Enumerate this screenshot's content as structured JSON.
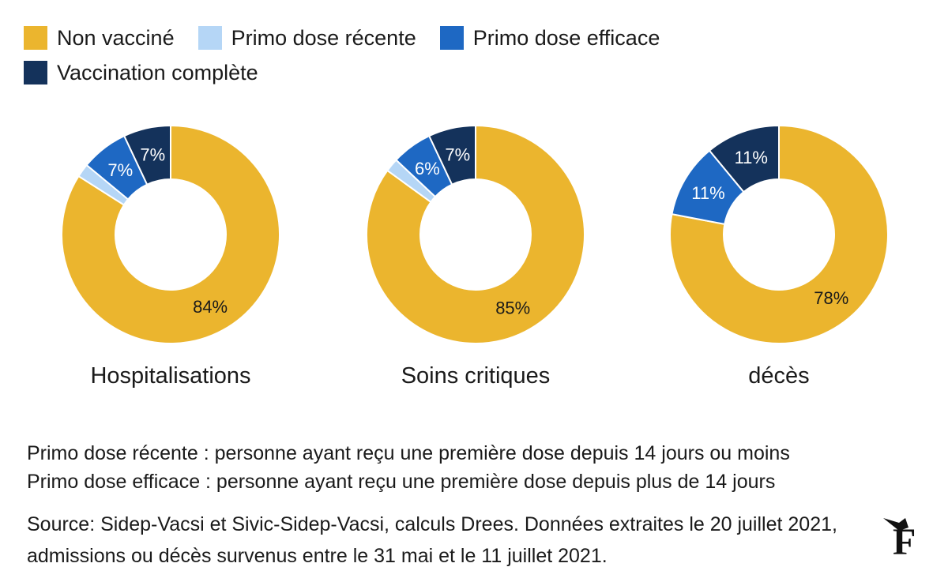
{
  "legend": {
    "items": [
      {
        "label": "Non vacciné",
        "color": "#ebb52e"
      },
      {
        "label": "Primo dose récente",
        "color": "#b5d6f6"
      },
      {
        "label": "Primo dose efficace",
        "color": "#1e68c3"
      },
      {
        "label": "Vaccination complète",
        "color": "#14325b"
      }
    ]
  },
  "chart_data": [
    {
      "type": "pie",
      "title": "Hospitalisations",
      "categories": [
        "Non vacciné",
        "Primo dose récente",
        "Primo dose efficace",
        "Vaccination complète"
      ],
      "values": [
        84,
        2,
        7,
        7
      ],
      "labels": [
        "84%",
        "",
        "7%",
        "7%"
      ]
    },
    {
      "type": "pie",
      "title": "Soins critiques",
      "categories": [
        "Non vacciné",
        "Primo dose récente",
        "Primo dose efficace",
        "Vaccination complète"
      ],
      "values": [
        85,
        2,
        6,
        7
      ],
      "labels": [
        "85%",
        "",
        "6%",
        "7%"
      ]
    },
    {
      "type": "pie",
      "title": "décès",
      "categories": [
        "Non vacciné",
        "Primo dose récente",
        "Primo dose efficace",
        "Vaccination complète"
      ],
      "values": [
        78,
        0,
        11,
        11
      ],
      "labels": [
        "78%",
        "",
        "11%",
        "11%"
      ]
    }
  ],
  "notes": {
    "line1": "Primo dose récente : personne ayant reçu une première dose depuis 14 jours ou moins",
    "line2": "Primo dose efficace : personne ayant reçu une première dose depuis plus de 14 jours"
  },
  "source": "Source: Sidep-Vacsi et Sivic-Sidep-Vacsi, calculs Drees. Données extraites le 20 juillet 2021, admissions ou décès survenus entre le 31 mai et le 11 juillet 2021.",
  "logo": {
    "icon": "le-figaro-logo",
    "letter": "F"
  }
}
